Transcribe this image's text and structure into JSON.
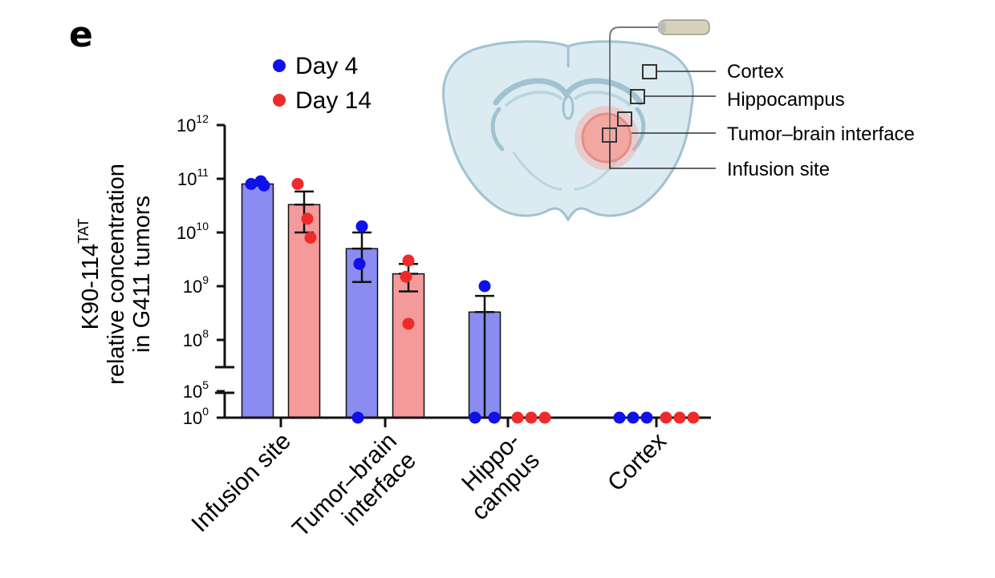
{
  "panel_label": "e",
  "colors": {
    "day4_fill": "#8a8cf2",
    "day4_point": "#1010e8",
    "day14_fill": "#f59a9a",
    "day14_point": "#ee2b2b",
    "axis": "#111111",
    "brain_fill": "#dcebf1",
    "brain_outline": "#9fc3d0",
    "tumor": "#f3a7a1"
  },
  "chart_data": {
    "type": "bar",
    "yscale": "log",
    "ylabel_line1": "K90-114",
    "ylabel_superscript": "TAT",
    "ylabel_line2": "relative concentration",
    "ylabel_line3": "in G411 tumors",
    "ylim": [
      1,
      1000000000000.0
    ],
    "axis_break": [
      100000,
      100000000
    ],
    "yticks": [
      {
        "value": 1,
        "base": "10",
        "exp": "0"
      },
      {
        "value": 100000,
        "base": "10",
        "exp": "5"
      },
      {
        "value": 100000000,
        "base": "10",
        "exp": "8"
      },
      {
        "value": 1000000000,
        "base": "10",
        "exp": "9"
      },
      {
        "value": 10000000000,
        "base": "10",
        "exp": "10"
      },
      {
        "value": 100000000000,
        "base": "10",
        "exp": "11"
      },
      {
        "value": 1000000000000,
        "base": "10",
        "exp": "12"
      }
    ],
    "categories": [
      {
        "lines": [
          "Infusion site"
        ]
      },
      {
        "lines": [
          "Tumor–brain",
          "interface"
        ]
      },
      {
        "lines": [
          "Hippo-",
          "campus"
        ]
      },
      {
        "lines": [
          "Cortex"
        ]
      }
    ],
    "legend": {
      "position": "top-left"
    },
    "series": [
      {
        "name": "Day 4",
        "mean": [
          80000000000,
          5000000000,
          330000000,
          1
        ],
        "sem_upper": [
          85000000000,
          10000000000,
          660000000,
          null
        ],
        "sem_lower": [
          75000000000,
          1200000000,
          1,
          null
        ],
        "points": [
          [
            80000000000,
            90000000000,
            75000000000
          ],
          [
            13000000000,
            2600000000,
            1
          ],
          [
            1000000000,
            1,
            1
          ],
          [
            1,
            1,
            1
          ]
        ]
      },
      {
        "name": "Day 14",
        "mean": [
          33000000000,
          1700000000,
          1,
          1
        ],
        "sem_upper": [
          58000000000,
          2600000000,
          null,
          null
        ],
        "sem_lower": [
          10000000000,
          800000000,
          null,
          null
        ],
        "points": [
          [
            80000000000,
            18000000000,
            8000000000
          ],
          [
            3000000000,
            1500000000,
            200000000
          ],
          [
            1,
            1,
            1
          ],
          [
            1,
            1,
            1
          ]
        ]
      }
    ]
  },
  "diagram": {
    "labels": [
      "Cortex",
      "Hippocampus",
      "Tumor–brain interface",
      "Infusion site"
    ]
  }
}
